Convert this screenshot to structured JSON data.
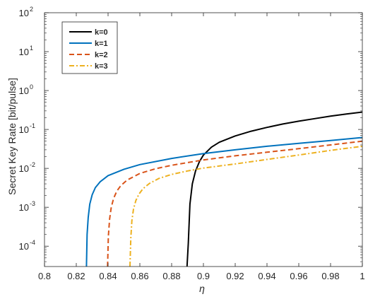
{
  "chart_data": {
    "type": "line",
    "xlabel": "η",
    "ylabel": "Secret Key Rate [bit/pulse]",
    "xlim": [
      0.8,
      1.0
    ],
    "ylim": [
      3e-05,
      100
    ],
    "y_scale": "log",
    "grid": false,
    "legend_position": "top-left",
    "x_ticks": [
      "0.8",
      "0.82",
      "0.84",
      "0.86",
      "0.88",
      "0.9",
      "0.92",
      "0.94",
      "0.96",
      "0.98",
      "1"
    ],
    "y_ticks": [
      {
        "base": "10",
        "exp": "-4",
        "value": 0.0001
      },
      {
        "base": "10",
        "exp": "-3",
        "value": 0.001
      },
      {
        "base": "10",
        "exp": "-2",
        "value": 0.01
      },
      {
        "base": "10",
        "exp": "-1",
        "value": 0.1
      },
      {
        "base": "10",
        "exp": "0",
        "value": 1
      },
      {
        "base": "10",
        "exp": "1",
        "value": 10
      },
      {
        "base": "10",
        "exp": "2",
        "value": 100
      }
    ],
    "series": [
      {
        "name": "k=0",
        "color": "#000000",
        "dash": "solid",
        "x": [
          0.8897,
          0.8905,
          0.8915,
          0.893,
          0.895,
          0.8975,
          0.9,
          0.905,
          0.91,
          0.92,
          0.93,
          0.94,
          0.95,
          0.96,
          0.97,
          0.98,
          0.99,
          1.0
        ],
        "y": [
          3e-05,
          0.00012,
          0.0012,
          0.004,
          0.0085,
          0.015,
          0.022,
          0.035,
          0.047,
          0.068,
          0.09,
          0.113,
          0.138,
          0.163,
          0.19,
          0.22,
          0.25,
          0.28
        ]
      },
      {
        "name": "k=1",
        "color": "#0072BD",
        "dash": "solid",
        "x": [
          0.8264,
          0.8268,
          0.8275,
          0.8285,
          0.83,
          0.832,
          0.835,
          0.84,
          0.85,
          0.86,
          0.88,
          0.9,
          0.92,
          0.94,
          0.96,
          0.98,
          1.0
        ],
        "y": [
          3e-05,
          0.0002,
          0.00055,
          0.0012,
          0.0021,
          0.0032,
          0.0045,
          0.0065,
          0.0095,
          0.0125,
          0.018,
          0.024,
          0.03,
          0.037,
          0.044,
          0.052,
          0.062
        ]
      },
      {
        "name": "k=2",
        "color": "#D95319",
        "dash": "dashed",
        "x": [
          0.8397,
          0.8402,
          0.841,
          0.842,
          0.8435,
          0.8455,
          0.848,
          0.852,
          0.86,
          0.87,
          0.88,
          0.9,
          0.92,
          0.94,
          0.96,
          0.98,
          1.0
        ],
        "y": [
          3e-05,
          0.00018,
          0.0005,
          0.001,
          0.0017,
          0.0026,
          0.0036,
          0.005,
          0.0074,
          0.0098,
          0.012,
          0.0165,
          0.021,
          0.026,
          0.032,
          0.04,
          0.05
        ]
      },
      {
        "name": "k=3",
        "color": "#EDB120",
        "dash": "dashdot",
        "x": [
          0.8538,
          0.8543,
          0.855,
          0.856,
          0.8575,
          0.8595,
          0.862,
          0.866,
          0.872,
          0.88,
          0.89,
          0.9,
          0.92,
          0.94,
          0.96,
          0.98,
          1.0
        ],
        "y": [
          3e-05,
          0.00016,
          0.00045,
          0.0009,
          0.0015,
          0.0022,
          0.003,
          0.0041,
          0.0055,
          0.007,
          0.0086,
          0.0102,
          0.013,
          0.017,
          0.022,
          0.029,
          0.037
        ]
      }
    ]
  }
}
